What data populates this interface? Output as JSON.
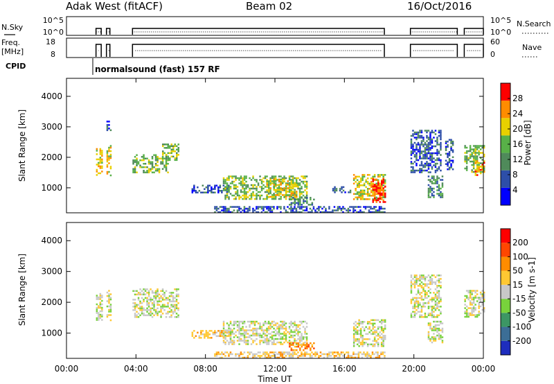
{
  "header": {
    "title": "Adak West (fitACF)",
    "beam": "Beam 02",
    "date": "16/Oct/2016"
  },
  "top_panels": {
    "nsky_label": "N.Sky",
    "nsearch_label": "N.Search",
    "freq_label_1": "Freq.",
    "freq_label_2": "[MHz]",
    "nave_label": "Nave",
    "cpid_label": "CPID",
    "nsky_ticks": [
      "10^5",
      "10^0"
    ],
    "nsearch_ticks": [
      "10^5",
      "10^0"
    ],
    "freq_ticks": [
      "18",
      "8"
    ],
    "nave_ticks": [
      "60",
      "0"
    ],
    "cpid_text": "normalsound (fast) 157 RF"
  },
  "chart_data": [
    {
      "type": "heatmap",
      "title": "",
      "xlabel": "",
      "ylabel": "Slant Range [km]",
      "ylim": [
        180,
        4590
      ],
      "xlim": [
        0,
        24
      ],
      "y_ticks": [
        "4000",
        "3000",
        "2000",
        "1000"
      ],
      "y_tick_values": [
        4000,
        3000,
        2000,
        1000
      ],
      "colorbar": {
        "label": "Power [dB]",
        "ticks": [
          "28",
          "24",
          "20",
          "16",
          "12",
          "8",
          "4"
        ],
        "colors": [
          "#0000ff",
          "#2d4ea8",
          "#4f8a5a",
          "#58b048",
          "#e8d000",
          "#ff8c00",
          "#ff0000"
        ]
      },
      "blobs": [
        {
          "t0": 1.7,
          "t1": 2.0,
          "r0": 1400,
          "r1": 2300,
          "level": 4
        },
        {
          "t0": 2.3,
          "t1": 2.5,
          "r0": 1400,
          "r1": 2400,
          "level": 4
        },
        {
          "t0": 2.3,
          "t1": 2.5,
          "r0": 2900,
          "r1": 3200,
          "level": 1
        },
        {
          "t0": 3.8,
          "t1": 5.8,
          "r0": 1500,
          "r1": 2100,
          "level": 3
        },
        {
          "t0": 5.5,
          "t1": 6.4,
          "r0": 1900,
          "r1": 2450,
          "level": 3
        },
        {
          "t0": 7.2,
          "t1": 9.4,
          "r0": 850,
          "r1": 1100,
          "level": 1
        },
        {
          "t0": 9.0,
          "t1": 13.8,
          "r0": 650,
          "r1": 1400,
          "level": 3
        },
        {
          "t0": 11.5,
          "t1": 13.2,
          "r0": 700,
          "r1": 1300,
          "level": 4
        },
        {
          "t0": 12.8,
          "t1": 14.2,
          "r0": 420,
          "r1": 700,
          "level": 2
        },
        {
          "t0": 15.2,
          "t1": 16.3,
          "r0": 850,
          "r1": 1050,
          "level": 1
        },
        {
          "t0": 16.5,
          "t1": 18.3,
          "r0": 600,
          "r1": 1450,
          "level": 4
        },
        {
          "t0": 17.6,
          "t1": 18.3,
          "r0": 550,
          "r1": 1300,
          "level": 6
        },
        {
          "t0": 8.5,
          "t1": 18.3,
          "r0": 200,
          "r1": 400,
          "level": 1
        },
        {
          "t0": 19.8,
          "t1": 21.5,
          "r0": 1500,
          "r1": 2900,
          "level": 1
        },
        {
          "t0": 20.8,
          "t1": 21.6,
          "r0": 700,
          "r1": 1400,
          "level": 2
        },
        {
          "t0": 21.8,
          "t1": 22.2,
          "r0": 1600,
          "r1": 2600,
          "level": 1
        },
        {
          "t0": 22.9,
          "t1": 24.0,
          "r0": 1500,
          "r1": 2400,
          "level": 3
        },
        {
          "t0": 23.5,
          "t1": 24.0,
          "r0": 1400,
          "r1": 1900,
          "level": 5
        }
      ]
    },
    {
      "type": "heatmap",
      "title": "",
      "xlabel": "Time UT",
      "ylabel": "Slant Range [km]",
      "ylim": [
        180,
        4590
      ],
      "xlim": [
        0,
        24
      ],
      "y_ticks": [
        "4000",
        "3000",
        "2000",
        "1000"
      ],
      "y_tick_values": [
        4000,
        3000,
        2000,
        1000
      ],
      "x_ticks": [
        "00:00",
        "04:00",
        "08:00",
        "12:00",
        "16:00",
        "20:00",
        "00:00"
      ],
      "x_tick_values": [
        0,
        4,
        8,
        12,
        16,
        20,
        24
      ],
      "colorbar": {
        "label": "Velocity [m s-1]",
        "ticks": [
          "200",
          "100",
          "50",
          "15",
          "-15",
          "-50",
          "-100",
          "-200"
        ],
        "colors": [
          "#1e2dbe",
          "#3c6e96",
          "#3c9664",
          "#78d23c",
          "#c8c8c8",
          "#ffc832",
          "#ff8c00",
          "#ff4600",
          "#ff0000"
        ]
      },
      "blobs": [
        {
          "t0": 1.7,
          "t1": 2.0,
          "r0": 1400,
          "r1": 2300,
          "level": 4
        },
        {
          "t0": 2.3,
          "t1": 2.5,
          "r0": 1400,
          "r1": 2400,
          "level": 4
        },
        {
          "t0": 3.8,
          "t1": 6.4,
          "r0": 1500,
          "r1": 2450,
          "level": 4
        },
        {
          "t0": 7.2,
          "t1": 9.4,
          "r0": 850,
          "r1": 1100,
          "level": 5
        },
        {
          "t0": 9.0,
          "t1": 13.8,
          "r0": 650,
          "r1": 1400,
          "level": 4
        },
        {
          "t0": 12.8,
          "t1": 14.2,
          "r0": 420,
          "r1": 700,
          "level": 6
        },
        {
          "t0": 16.5,
          "t1": 18.3,
          "r0": 600,
          "r1": 1450,
          "level": 4
        },
        {
          "t0": 8.5,
          "t1": 18.3,
          "r0": 200,
          "r1": 400,
          "level": 5
        },
        {
          "t0": 19.8,
          "t1": 21.5,
          "r0": 1500,
          "r1": 2900,
          "level": 4
        },
        {
          "t0": 20.8,
          "t1": 21.6,
          "r0": 700,
          "r1": 1400,
          "level": 4
        },
        {
          "t0": 22.9,
          "t1": 24.0,
          "r0": 1500,
          "r1": 2400,
          "level": 4
        }
      ]
    }
  ]
}
